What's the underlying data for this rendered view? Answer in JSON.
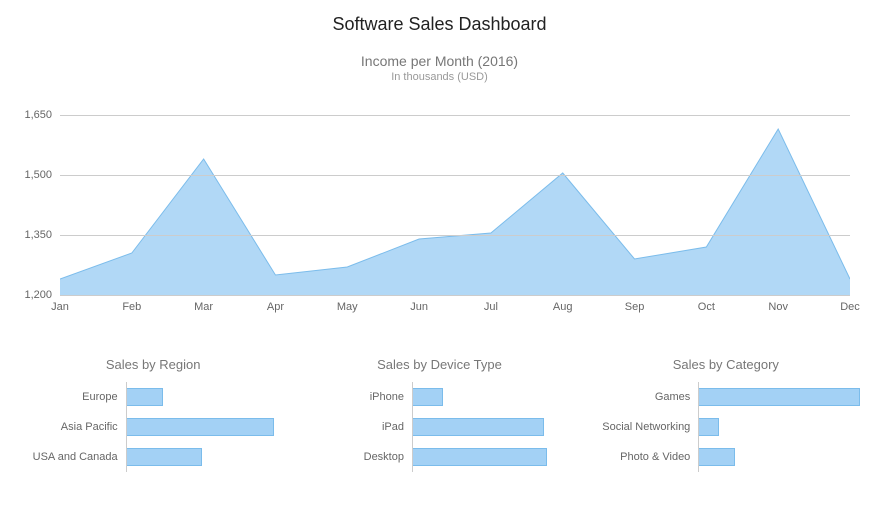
{
  "dashboard": {
    "title": "Software Sales Dashboard"
  },
  "area_chart": {
    "type": "area",
    "title": "Income per Month (2016)",
    "subtitle": "In thousands (USD)",
    "categories": [
      "Jan",
      "Feb",
      "Mar",
      "Apr",
      "May",
      "Jun",
      "Jul",
      "Aug",
      "Sep",
      "Oct",
      "Nov",
      "Dec"
    ],
    "values": [
      1240,
      1305,
      1540,
      1250,
      1270,
      1340,
      1355,
      1505,
      1290,
      1320,
      1615,
      1240
    ],
    "ylim": [
      1200,
      1650
    ],
    "yticks": [
      1200,
      1350,
      1500,
      1650
    ],
    "ytick_labels": [
      "1,200",
      "1,350",
      "1,500",
      "1,650"
    ],
    "fill_color": "#a3d1f5",
    "fill_opacity": 0.85,
    "stroke_color": "#7bbceb",
    "stroke_width": 1,
    "grid_color": "#cccccc",
    "background_color": "#ffffff",
    "label_fontsize": 11,
    "label_color": "#666666",
    "title_fontsize": 14,
    "title_color": "#777777",
    "subtitle_fontsize": 11,
    "subtitle_color": "#999999"
  },
  "bar_charts": [
    {
      "type": "bar",
      "title": "Sales by Region",
      "max": 100,
      "bar_color": "#a3d1f5",
      "stroke_color": "#7bbceb",
      "items": [
        {
          "label": "Europe",
          "value": 22
        },
        {
          "label": "Asia Pacific",
          "value": 90
        },
        {
          "label": "USA and Canada",
          "value": 46
        }
      ]
    },
    {
      "type": "bar",
      "title": "Sales by Device Type",
      "max": 100,
      "bar_color": "#a3d1f5",
      "stroke_color": "#7bbceb",
      "items": [
        {
          "label": "iPhone",
          "value": 18
        },
        {
          "label": "iPad",
          "value": 80
        },
        {
          "label": "Desktop",
          "value": 82
        }
      ]
    },
    {
      "type": "bar",
      "title": "Sales by Category",
      "max": 100,
      "bar_color": "#a3d1f5",
      "stroke_color": "#7bbceb",
      "items": [
        {
          "label": "Games",
          "value": 98
        },
        {
          "label": "Social Networking",
          "value": 12
        },
        {
          "label": "Photo & Video",
          "value": 22
        }
      ]
    }
  ]
}
